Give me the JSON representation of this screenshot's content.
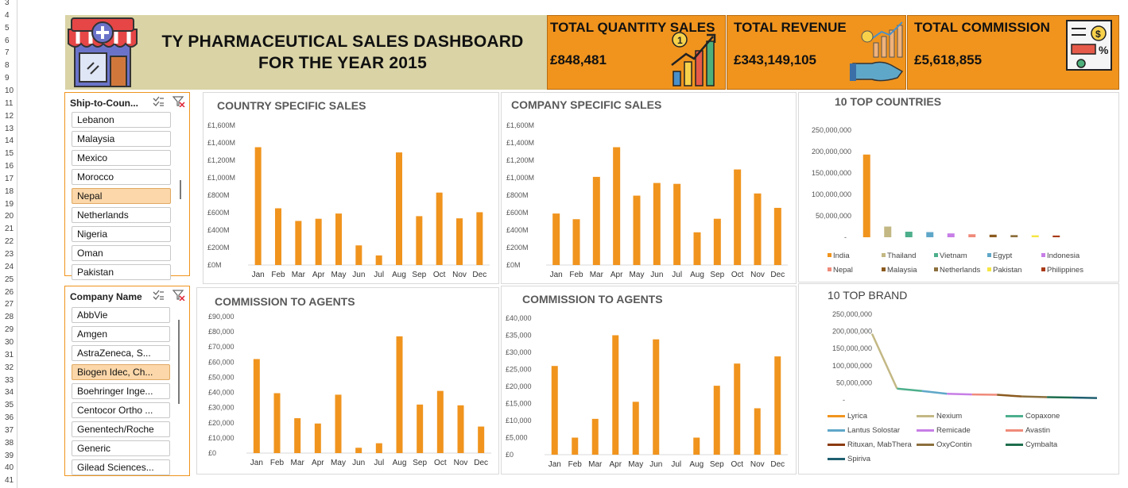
{
  "row_numbers": [
    "3",
    "4",
    "5",
    "6",
    "7",
    "8",
    "9",
    "10",
    "11",
    "12",
    "13",
    "14",
    "15",
    "16",
    "17",
    "18",
    "19",
    "20",
    "21",
    "22",
    "23",
    "24",
    "25",
    "26",
    "27",
    "28",
    "29",
    "30",
    "31",
    "32",
    "33",
    "34",
    "35",
    "36",
    "37",
    "38",
    "39",
    "40",
    "41"
  ],
  "header": {
    "title": "TY PHARMACEUTICAL SALES DASHBOARD FOR THE YEAR 2015"
  },
  "kpis": [
    {
      "label": "TOTAL QUANTITY SALES",
      "value": "£848,481",
      "icon": "growth-chart-icon"
    },
    {
      "label": "TOTAL REVENUE",
      "value": "£343,149,105",
      "icon": "revenue-hand-icon"
    },
    {
      "label": "TOTAL COMMISSION",
      "value": "£5,618,855",
      "icon": "invoice-dollar-icon"
    }
  ],
  "slicers": {
    "country": {
      "title": "Ship-to-Coun...",
      "items": [
        "Lebanon",
        "Malaysia",
        "Mexico",
        "Morocco",
        "Nepal",
        "Netherlands",
        "Nigeria",
        "Oman",
        "Pakistan"
      ],
      "selected": "Nepal"
    },
    "company": {
      "title": "Company Name",
      "items": [
        "AbbVie",
        "Amgen",
        "AstraZeneca, S...",
        "Biogen Idec, Ch...",
        "Boehringer Inge...",
        "Centocor Ortho ...",
        "Genentech/Roche",
        "Generic",
        "Gilead Sciences..."
      ],
      "selected": "Biogen Idec, Ch..."
    }
  },
  "chart_data": [
    {
      "id": "country-sales",
      "type": "bar",
      "title": "COUNTRY SPECIFIC SALES",
      "categories": [
        "Jan",
        "Feb",
        "Mar",
        "Apr",
        "May",
        "Jun",
        "Jul",
        "Aug",
        "Sep",
        "Oct",
        "Nov",
        "Dec"
      ],
      "values": [
        1350,
        650,
        505,
        530,
        590,
        225,
        110,
        1290,
        560,
        830,
        535,
        605
      ],
      "ylim": [
        0,
        1600
      ],
      "yticks": [
        "£0M",
        "£200M",
        "£400M",
        "£600M",
        "£800M",
        "£1,000M",
        "£1,200M",
        "£1,400M",
        "£1,600M"
      ],
      "color": "#f0941e"
    },
    {
      "id": "company-sales",
      "type": "bar",
      "title": "COMPANY SPECIFIC SALES",
      "categories": [
        "Jan",
        "Feb",
        "Mar",
        "Apr",
        "May",
        "Jun",
        "Jul",
        "Aug",
        "Sep",
        "Oct",
        "Nov",
        "Dec"
      ],
      "values": [
        590,
        525,
        1010,
        1350,
        795,
        940,
        930,
        375,
        530,
        1095,
        820,
        655
      ],
      "ylim": [
        0,
        1600
      ],
      "yticks": [
        "£0M",
        "£200M",
        "£400M",
        "£600M",
        "£800M",
        "£1,000M",
        "£1,200M",
        "£1,400M",
        "£1,600M"
      ],
      "color": "#f0941e"
    },
    {
      "id": "top-countries",
      "type": "bar",
      "title": "10 TOP COUNTRIES",
      "categories": [
        "India",
        "Thailand",
        "Vietnam",
        "Egypt",
        "Indonesia",
        "Nepal",
        "Malaysia",
        "Netherlands",
        "Pakistan",
        "Philippines"
      ],
      "values": [
        193000000,
        25000000,
        13000000,
        12000000,
        9000000,
        7000000,
        6000000,
        5000000,
        4500000,
        4000000
      ],
      "colors": [
        "#f0941e",
        "#c3b884",
        "#4daf8c",
        "#5fa7c9",
        "#c77ee6",
        "#f08a7a",
        "#8b5a1f",
        "#8c6f3d",
        "#f5e642",
        "#a83a16"
      ],
      "ylim": [
        0,
        250000000
      ],
      "yticks": [
        "-",
        "50,000,000",
        "100,000,000",
        "150,000,000",
        "200,000,000",
        "250,000,000"
      ],
      "legend": "bottom"
    },
    {
      "id": "commission-country",
      "type": "bar",
      "title": "COMMISSION TO AGENTS",
      "categories": [
        "Jan",
        "Feb",
        "Mar",
        "Apr",
        "May",
        "Jun",
        "Jul",
        "Aug",
        "Sep",
        "Oct",
        "Nov",
        "Dec"
      ],
      "values": [
        62000,
        39500,
        23000,
        19500,
        38500,
        3500,
        6500,
        77000,
        32000,
        41000,
        31500,
        17500
      ],
      "ylim": [
        0,
        90000
      ],
      "yticks": [
        "£0",
        "£10,000",
        "£20,000",
        "£30,000",
        "£40,000",
        "£50,000",
        "£60,000",
        "£70,000",
        "£80,000",
        "£90,000"
      ],
      "color": "#f0941e"
    },
    {
      "id": "commission-company",
      "type": "bar",
      "title": "COMMISSION TO AGENTS",
      "categories": [
        "Jan",
        "Feb",
        "Mar",
        "Apr",
        "May",
        "Jun",
        "Jul",
        "Aug",
        "Sep",
        "Oct",
        "Nov",
        "Dec"
      ],
      "values": [
        26000,
        5000,
        10500,
        35000,
        15500,
        33800,
        0,
        5000,
        20200,
        26700,
        13600,
        28800
      ],
      "ylim": [
        0,
        40000
      ],
      "yticks": [
        "£0",
        "£5,000",
        "£10,000",
        "£15,000",
        "£20,000",
        "£25,000",
        "£30,000",
        "£35,000",
        "£40,000"
      ],
      "color": "#f0941e"
    },
    {
      "id": "top-brand",
      "type": "line",
      "title": "10 TOP BRAND",
      "categories": [
        "Lyrica",
        "Nexium",
        "Copaxone",
        "Lantus Solostar",
        "Remicade",
        "Avastin",
        "Rituxan, MabThera",
        "OxyContin",
        "Cymbalta",
        "Spiriva"
      ],
      "values": [
        193000000,
        33000000,
        26000000,
        18000000,
        16000000,
        15000000,
        10000000,
        8000000,
        7000000,
        5500000
      ],
      "colors": [
        "#c3b884",
        "#c3b884",
        "#4daf8c",
        "#5fa7c9",
        "#c77ee6",
        "#f08a7a",
        "#8b5a1f",
        "#8c6f3d",
        "#1e6e4e",
        "#1f5f70"
      ],
      "legend_colors": [
        "#f0941e",
        "#c3b884",
        "#4daf8c",
        "#5fa7c9",
        "#c77ee6",
        "#f08a7a",
        "#8b3a10",
        "#8c6f3d",
        "#1e6e4e",
        "#1f5f70"
      ],
      "ylim": [
        0,
        250000000
      ],
      "yticks": [
        "-",
        "50,000,000",
        "100,000,000",
        "150,000,000",
        "200,000,000",
        "250,000,000"
      ],
      "legend": "bottom"
    }
  ]
}
